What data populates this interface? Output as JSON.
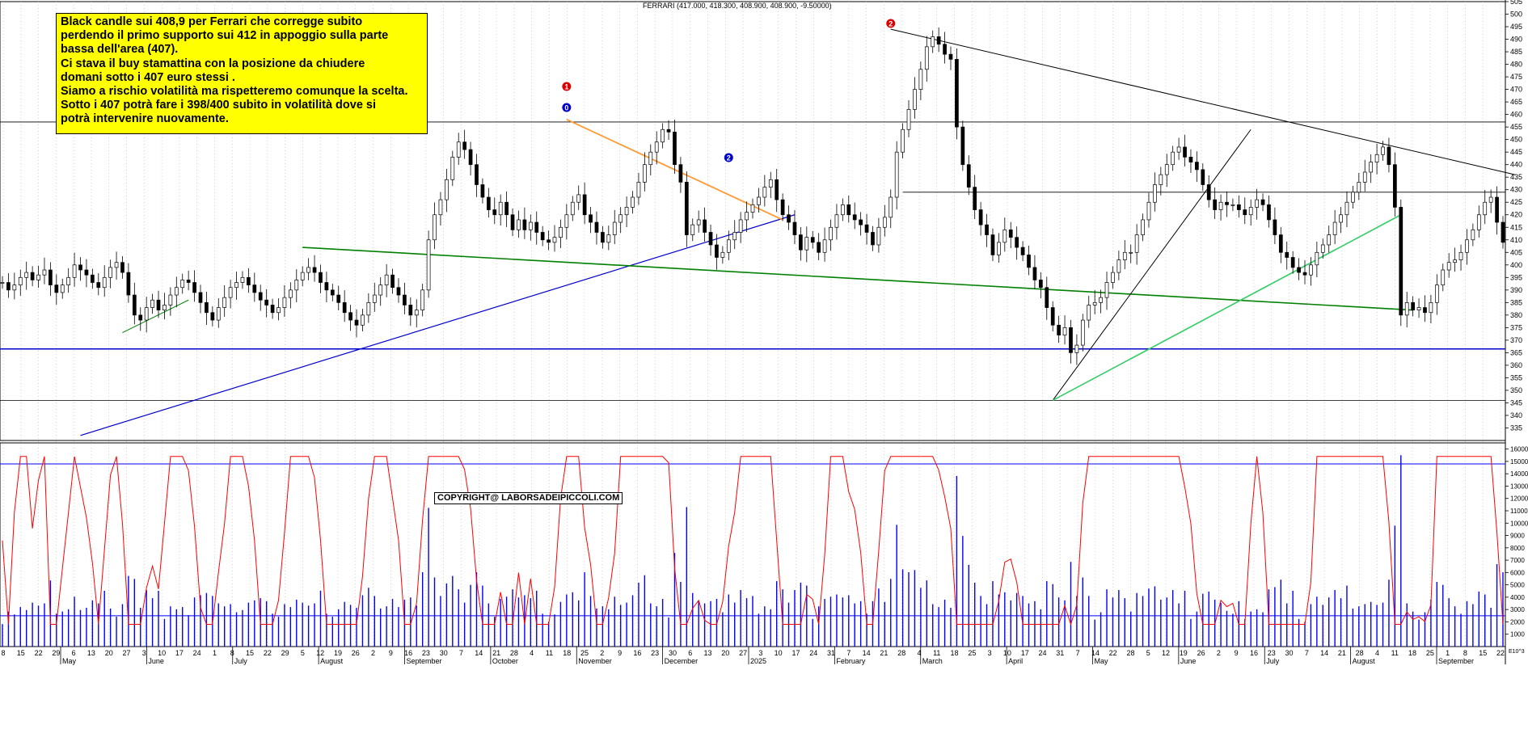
{
  "header": {
    "title": "FERRARI (417.000, 418.300, 408.900, 408.900, -9.50000)"
  },
  "note": {
    "lines": [
      "Black candle sui 408,9 per Ferrari che corregge subito",
      "perdendo il primo supporto sui 412 in appoggio sulla parte",
      "bassa dell'area (407).",
      "Ci stava il buy stamattina con la posizione da chiudere",
      "domani sotto i 407 euro stessi .",
      "Siamo a rischio volatilità ma rispetteremo comunque la scelta.",
      "Sotto i 407 potrà fare i 398/400 subito in volatilità dove si",
      "potrà intervenire nuovamente."
    ]
  },
  "copyright": "COPYRIGHT@ LABORSADEIPICCOLI.COM",
  "markers": [
    {
      "label": "1",
      "color": "#0000cc",
      "date_index": 45
    },
    {
      "label": "1",
      "color": "#dd0000",
      "date_index": 94
    },
    {
      "label": "0",
      "color": "#0000cc",
      "date_index": 94
    },
    {
      "label": "2",
      "color": "#0000cc",
      "date_index": 121
    },
    {
      "label": "2",
      "color": "#dd0000",
      "date_index": 148
    }
  ],
  "colors": {
    "price": "#000000",
    "volume": "#0000ff",
    "oscillator": "#ff0000",
    "support": "#0000cc",
    "trend_green": "#008000",
    "trend_orange": "#ff9933",
    "trend_black": "#000000",
    "trend_light_green": "#33cc66",
    "grid": "#bbbbbb",
    "note_bg": "#ffff00"
  },
  "chart_data": [
    {
      "type": "candlestick",
      "title": "FERRARI (417.000, 418.300, 408.900, 408.900, -9.50000)",
      "ylim": [
        330,
        505
      ],
      "y_ticks": [
        335,
        340,
        345,
        350,
        355,
        360,
        365,
        370,
        375,
        380,
        385,
        390,
        395,
        400,
        405,
        410,
        415,
        420,
        425,
        430,
        435,
        440,
        445,
        450,
        455,
        460,
        465,
        470,
        475,
        480,
        485,
        490,
        495,
        500,
        505
      ],
      "x_day_ticks": [
        "8",
        "15",
        "22",
        "29",
        "6",
        "13",
        "20",
        "27",
        "3",
        "10",
        "17",
        "24",
        "1",
        "8",
        "15",
        "22",
        "29",
        "5",
        "12",
        "19",
        "26",
        "2",
        "9",
        "16",
        "23",
        "30",
        "7",
        "14",
        "21",
        "28",
        "4",
        "11",
        "18",
        "25",
        "2",
        "9",
        "16",
        "23",
        "30",
        "6",
        "13",
        "20",
        "27",
        "3",
        "10",
        "17",
        "24",
        "31",
        "7",
        "14",
        "21",
        "28",
        "4",
        "11",
        "18",
        "25",
        "3",
        "10",
        "17",
        "24",
        "31",
        "7",
        "14",
        "22",
        "28",
        "5",
        "12",
        "19",
        "26",
        "2",
        "9",
        "16",
        "23",
        "30",
        "7",
        "14",
        "21",
        "28",
        "4",
        "11",
        "18",
        "25",
        "1",
        "8",
        "15",
        "22"
      ],
      "x_month_labels": [
        "May",
        "June",
        "July",
        "August",
        "September",
        "October",
        "November",
        "December",
        "2025",
        "February",
        "March",
        "April",
        "May",
        "June",
        "July",
        "August",
        "September"
      ],
      "horizontal_lines": [
        457,
        429,
        366.5,
        346
      ],
      "key_levels": {
        "last_close": 408.9,
        "support": 412,
        "area": 407,
        "targets": [
          398,
          400
        ]
      },
      "closes": [
        393,
        390,
        392,
        395,
        397,
        394,
        396,
        398,
        392,
        389,
        392,
        395,
        400,
        398,
        396,
        393,
        391,
        395,
        399,
        401,
        397,
        388,
        380,
        378,
        383,
        386,
        382,
        384,
        388,
        391,
        394,
        393,
        389,
        385,
        381,
        378,
        383,
        387,
        391,
        393,
        395,
        392,
        389,
        386,
        384,
        381,
        383,
        387,
        390,
        394,
        397,
        399,
        397,
        393,
        390,
        388,
        385,
        381,
        378,
        376,
        380,
        385,
        388,
        392,
        396,
        391,
        388,
        384,
        380,
        382,
        390,
        410,
        420,
        426,
        434,
        443,
        449,
        446,
        440,
        432,
        427,
        422,
        420,
        425,
        420,
        414,
        418,
        414,
        417,
        413,
        410,
        409,
        411,
        415,
        420,
        425,
        428,
        420,
        417,
        413,
        409,
        412,
        417,
        420,
        423,
        427,
        433,
        440,
        445,
        449,
        454,
        453,
        440,
        433,
        412,
        416,
        418,
        413,
        408,
        403,
        405,
        410,
        413,
        418,
        421,
        424,
        427,
        431,
        434,
        426,
        420,
        417,
        412,
        406,
        411,
        409,
        405,
        410,
        415,
        420,
        424,
        420,
        418,
        416,
        413,
        408,
        415,
        419,
        427,
        445,
        454,
        462,
        470,
        478,
        487,
        491,
        488,
        484,
        482,
        455,
        440,
        431,
        422,
        416,
        412,
        404,
        409,
        414,
        411,
        407,
        404,
        399,
        394,
        391,
        383,
        376,
        372,
        375,
        365,
        368,
        378,
        384,
        385,
        387,
        393,
        397,
        402,
        405,
        405,
        412,
        418,
        425,
        432,
        436,
        440,
        445,
        447,
        443,
        441,
        438,
        432,
        426,
        422,
        425,
        424,
        424,
        422,
        420,
        423,
        426,
        424,
        418,
        412,
        405,
        403,
        399,
        397,
        396,
        400,
        405,
        408,
        412,
        417,
        420,
        425,
        429,
        433,
        437,
        441,
        444,
        447,
        440,
        423,
        380,
        385,
        382,
        383,
        381,
        385,
        392,
        398,
        401,
        402,
        405,
        410,
        414,
        420,
        425,
        427,
        417,
        409
      ],
      "volume": {
        "ylim": [
          0,
          16500
        ],
        "reference_lines": [
          14800,
          2500
        ]
      },
      "oscillator_ylim": [
        0,
        16500
      ],
      "y_ticks_lower": [
        1000,
        2000,
        3000,
        4000,
        5000,
        6000,
        7000,
        8000,
        9000,
        10000,
        11000,
        12000,
        13000,
        14000,
        15000,
        16000
      ],
      "y_unit_lower": "E10^3"
    }
  ]
}
